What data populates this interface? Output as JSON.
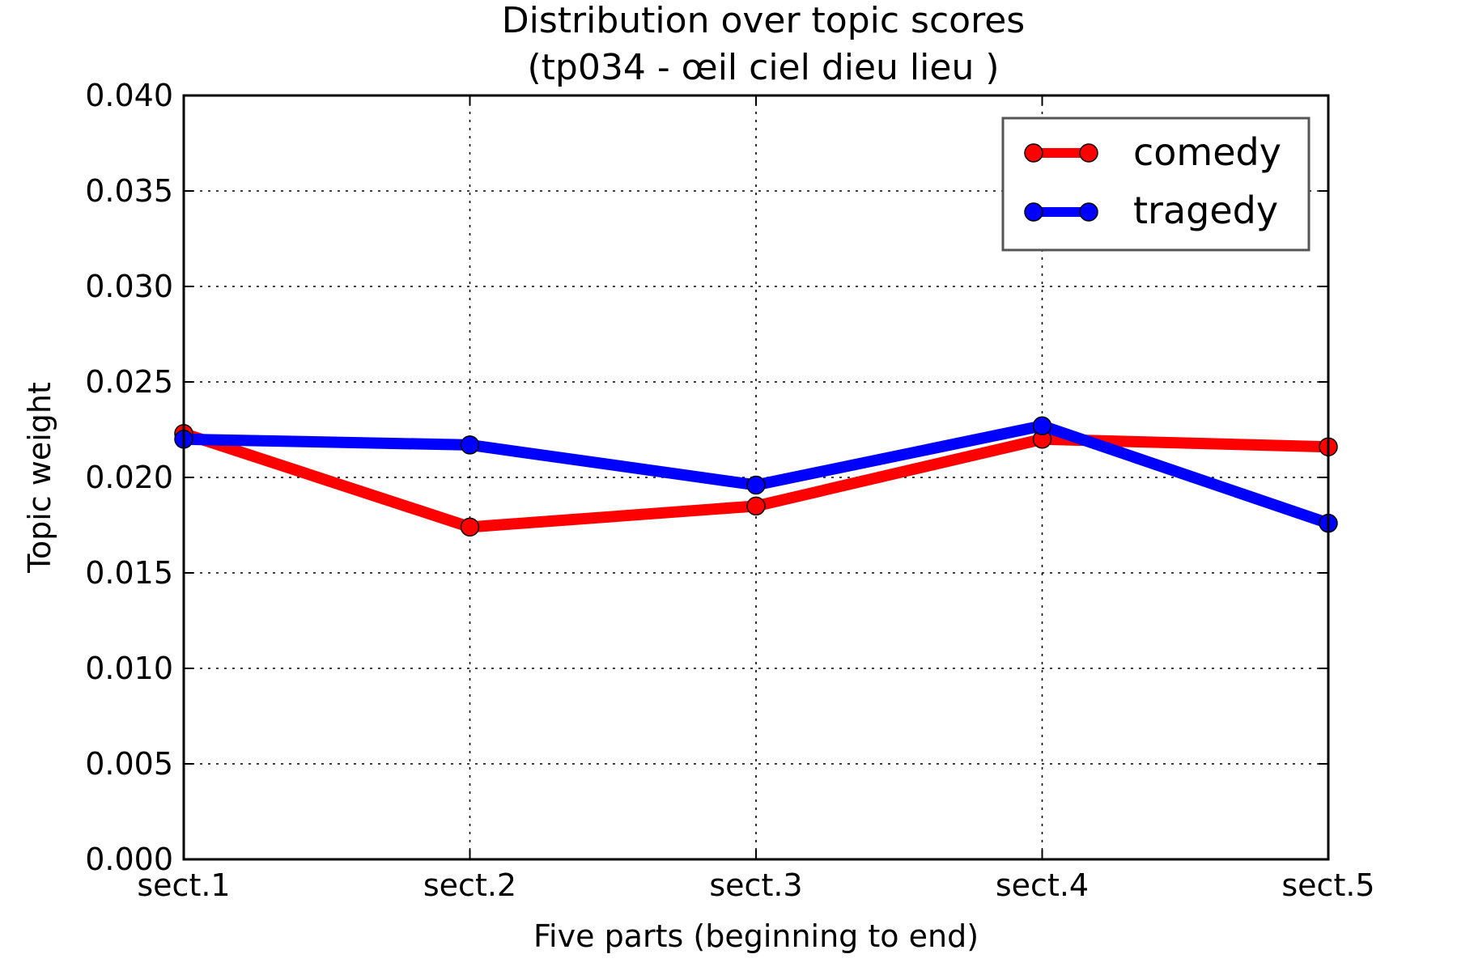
{
  "chart_data": {
    "type": "line",
    "title_line1": "Distribution over topic scores",
    "title_line2": "(tp034 - œil ciel dieu lieu )",
    "xlabel": "Five parts (beginning to end)",
    "ylabel": "Topic weight",
    "categories": [
      "sect.1",
      "sect.2",
      "sect.3",
      "sect.4",
      "sect.5"
    ],
    "ylim": [
      0,
      0.04
    ],
    "yticks": [
      0.0,
      0.005,
      0.01,
      0.015,
      0.02,
      0.025,
      0.03,
      0.035,
      0.04
    ],
    "ytick_labels": [
      "0.000",
      "0.005",
      "0.010",
      "0.015",
      "0.020",
      "0.025",
      "0.030",
      "0.035",
      "0.040"
    ],
    "grid": true,
    "legend_position": "top-right",
    "series": [
      {
        "name": "comedy",
        "color": "#ff0000",
        "values": [
          0.0223,
          0.0174,
          0.0185,
          0.022,
          0.0216
        ]
      },
      {
        "name": "tragedy",
        "color": "#0000ff",
        "values": [
          0.022,
          0.0217,
          0.0196,
          0.0227,
          0.0176
        ]
      }
    ]
  }
}
